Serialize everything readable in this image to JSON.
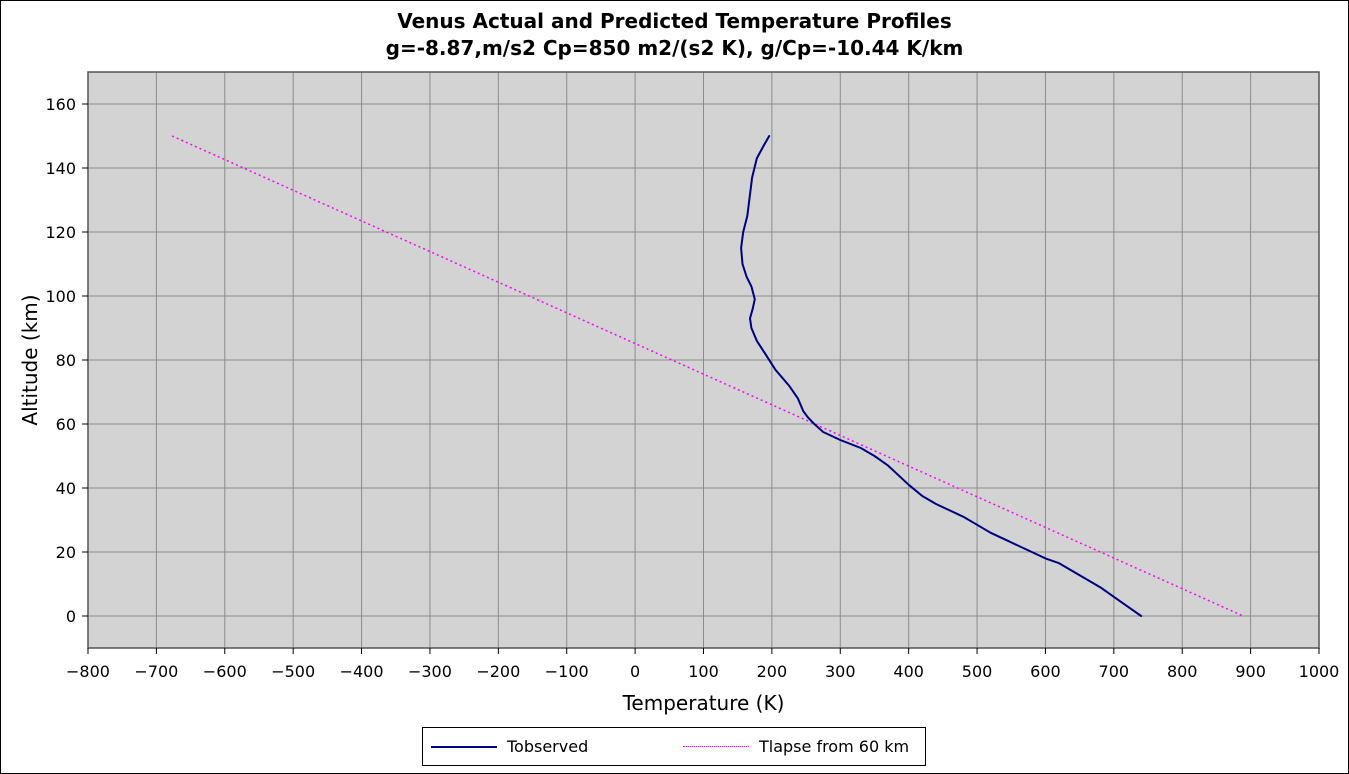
{
  "chart_data": {
    "type": "line",
    "title_lines": [
      "Venus Actual and Predicted Temperature Profiles",
      "g=-8.87,m/s2 Cp=850 m2/(s2 K), g/Cp=-10.44 K/km"
    ],
    "xlabel": "Temperature (K)",
    "ylabel": "Altitude (km)",
    "xlim": [
      -800,
      1000
    ],
    "ylim": [
      -10,
      170
    ],
    "xticks": [
      -800,
      -700,
      -600,
      -500,
      -400,
      -300,
      -200,
      -100,
      0,
      100,
      200,
      300,
      400,
      500,
      600,
      700,
      800,
      900,
      1000
    ],
    "yticks": [
      0,
      20,
      40,
      60,
      80,
      100,
      120,
      140,
      160
    ],
    "grid": true,
    "legend_position": "bottom",
    "series": [
      {
        "name": "Tobserved",
        "color": "#000080",
        "style": "solid",
        "points": [
          [
            740,
            0
          ],
          [
            720,
            3
          ],
          [
            700,
            6
          ],
          [
            680,
            9
          ],
          [
            660,
            11.5
          ],
          [
            640,
            14
          ],
          [
            620,
            16.5
          ],
          [
            600,
            18
          ],
          [
            580,
            20
          ],
          [
            560,
            22
          ],
          [
            540,
            24
          ],
          [
            520,
            26
          ],
          [
            500,
            28.5
          ],
          [
            480,
            31
          ],
          [
            460,
            33
          ],
          [
            440,
            35
          ],
          [
            420,
            37.5
          ],
          [
            400,
            41
          ],
          [
            385,
            44
          ],
          [
            370,
            47
          ],
          [
            350,
            50
          ],
          [
            330,
            52.5
          ],
          [
            300,
            55
          ],
          [
            275,
            57.5
          ],
          [
            262,
            60
          ],
          [
            253,
            62
          ],
          [
            246,
            64
          ],
          [
            238,
            68
          ],
          [
            225,
            72
          ],
          [
            205,
            77
          ],
          [
            190,
            82
          ],
          [
            178,
            86
          ],
          [
            170,
            90
          ],
          [
            168,
            93
          ],
          [
            172,
            96
          ],
          [
            175,
            99
          ],
          [
            170,
            103
          ],
          [
            163,
            106
          ],
          [
            157,
            110
          ],
          [
            155,
            115
          ],
          [
            158,
            120
          ],
          [
            164,
            125
          ],
          [
            167,
            130
          ],
          [
            171,
            137
          ],
          [
            178,
            143
          ],
          [
            188,
            147
          ],
          [
            196,
            150
          ]
        ]
      },
      {
        "name": "Tlapse from 60 km",
        "color": "#ff00ff",
        "style": "dotted",
        "points": [
          [
            -677,
            150
          ],
          [
            889,
            0
          ]
        ]
      }
    ]
  }
}
